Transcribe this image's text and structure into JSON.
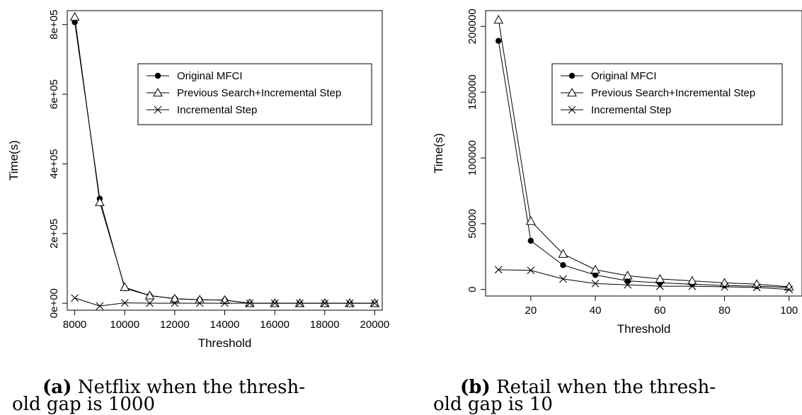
{
  "chart_data": [
    {
      "type": "line",
      "xlabel": "Threshold",
      "ylabel": "Time(s)",
      "xlim": [
        7700,
        20300
      ],
      "ylim": [
        -20000,
        840000
      ],
      "x_ticks": [
        "8000",
        "10000",
        "12000",
        "14000",
        "16000",
        "18000",
        "20000"
      ],
      "x_tick_values": [
        8000,
        10000,
        12000,
        14000,
        16000,
        18000,
        20000
      ],
      "y_ticks": [
        "0e+00",
        "2e+05",
        "4e+05",
        "6e+05",
        "8e+05"
      ],
      "y_tick_values": [
        0,
        200000,
        400000,
        600000,
        800000
      ],
      "legend_position": "top-right",
      "x": [
        8000,
        9000,
        10000,
        11000,
        12000,
        13000,
        14000,
        15000,
        16000,
        17000,
        18000,
        19000,
        20000
      ],
      "series": [
        {
          "name": "Original MFCI",
          "marker": "filled-circle",
          "values": [
            807000,
            300000,
            43000,
            22000,
            13000,
            10000,
            9000,
            0,
            0,
            0,
            0,
            0,
            0
          ]
        },
        {
          "name": "Previous Search+Incremental Step",
          "marker": "triangle",
          "values": [
            822000,
            290000,
            46000,
            22000,
            13000,
            10000,
            9000,
            0,
            0,
            0,
            0,
            0,
            0
          ]
        },
        {
          "name": "Incremental Step",
          "marker": "cross",
          "values": [
            15000,
            -8000,
            1000,
            0,
            0,
            0,
            0,
            0,
            0,
            0,
            0,
            0,
            0
          ]
        }
      ]
    },
    {
      "type": "line",
      "xlabel": "Threshold",
      "ylabel": "Time(s)",
      "xlim": [
        6,
        104
      ],
      "ylim": [
        -5000,
        212000
      ],
      "x_ticks": [
        "20",
        "40",
        "60",
        "80",
        "100"
      ],
      "x_tick_values": [
        20,
        40,
        60,
        80,
        100
      ],
      "y_ticks": [
        "0",
        "50000",
        "100000",
        "150000",
        "200000"
      ],
      "y_tick_values": [
        0,
        50000,
        100000,
        150000,
        200000
      ],
      "legend_position": "top-right",
      "x": [
        10,
        20,
        30,
        40,
        50,
        60,
        70,
        80,
        90,
        100
      ],
      "series": [
        {
          "name": "Original MFCI",
          "marker": "filled-circle",
          "values": [
            189000,
            37000,
            18500,
            11000,
            6500,
            5000,
            4000,
            3000,
            2500,
            1500
          ]
        },
        {
          "name": "Previous Search+Incremental Step",
          "marker": "triangle",
          "values": [
            205000,
            52000,
            27000,
            15000,
            10500,
            8000,
            6500,
            5000,
            4000,
            2000
          ]
        },
        {
          "name": "Incremental Step",
          "marker": "cross",
          "values": [
            15000,
            14500,
            8000,
            4500,
            3500,
            2500,
            2500,
            2000,
            1500,
            0
          ]
        }
      ]
    }
  ],
  "captions": [
    {
      "tag": "(a)",
      "line1": "Netflix when the thresh-",
      "line2": "old gap is 1000"
    },
    {
      "tag": "(b)",
      "line1": "Retail when the thresh-",
      "line2": "old gap is 10"
    }
  ]
}
